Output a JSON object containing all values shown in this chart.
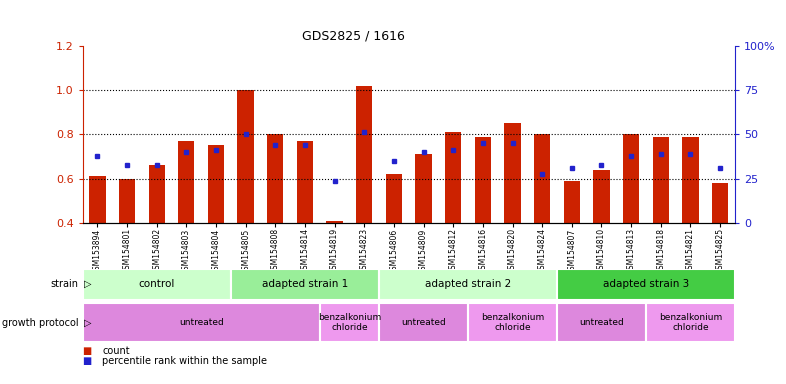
{
  "title": "GDS2825 / 1616",
  "samples": [
    "GSM153894",
    "GSM154801",
    "GSM154802",
    "GSM154803",
    "GSM154804",
    "GSM154805",
    "GSM154808",
    "GSM154814",
    "GSM154819",
    "GSM154823",
    "GSM154806",
    "GSM154809",
    "GSM154812",
    "GSM154816",
    "GSM154820",
    "GSM154824",
    "GSM154807",
    "GSM154810",
    "GSM154813",
    "GSM154818",
    "GSM154821",
    "GSM154825"
  ],
  "bar_values": [
    0.61,
    0.6,
    0.66,
    0.77,
    0.75,
    1.0,
    0.8,
    0.77,
    0.41,
    1.02,
    0.62,
    0.71,
    0.81,
    0.79,
    0.85,
    0.8,
    0.59,
    0.64,
    0.8,
    0.79,
    0.79,
    0.58
  ],
  "dot_values": [
    0.7,
    0.66,
    0.66,
    0.72,
    0.73,
    0.8,
    0.75,
    0.75,
    0.59,
    0.81,
    0.68,
    0.72,
    0.73,
    0.76,
    0.76,
    0.62,
    0.65,
    0.66,
    0.7,
    0.71,
    0.71,
    0.65
  ],
  "bar_color": "#cc2200",
  "dot_color": "#2222cc",
  "ylim": [
    0.4,
    1.2
  ],
  "y_ticks_left": [
    0.4,
    0.6,
    0.8,
    1.0,
    1.2
  ],
  "y_ticks_right": [
    0,
    25,
    50,
    75,
    100
  ],
  "dotted_lines": [
    0.6,
    0.8,
    1.0
  ],
  "strain_groups": [
    {
      "label": "control",
      "start": 0,
      "end": 5,
      "color": "#ccffcc"
    },
    {
      "label": "adapted strain 1",
      "start": 5,
      "end": 10,
      "color": "#99ee99"
    },
    {
      "label": "adapted strain 2",
      "start": 10,
      "end": 16,
      "color": "#ccffcc"
    },
    {
      "label": "adapted strain 3",
      "start": 16,
      "end": 22,
      "color": "#44cc44"
    }
  ],
  "protocol_groups": [
    {
      "label": "untreated",
      "start": 0,
      "end": 8,
      "color": "#dd88dd"
    },
    {
      "label": "benzalkonium\nchloride",
      "start": 8,
      "end": 10,
      "color": "#ee99ee"
    },
    {
      "label": "untreated",
      "start": 10,
      "end": 13,
      "color": "#dd88dd"
    },
    {
      "label": "benzalkonium\nchloride",
      "start": 13,
      "end": 16,
      "color": "#ee99ee"
    },
    {
      "label": "untreated",
      "start": 16,
      "end": 19,
      "color": "#dd88dd"
    },
    {
      "label": "benzalkonium\nchloride",
      "start": 19,
      "end": 22,
      "color": "#ee99ee"
    }
  ]
}
